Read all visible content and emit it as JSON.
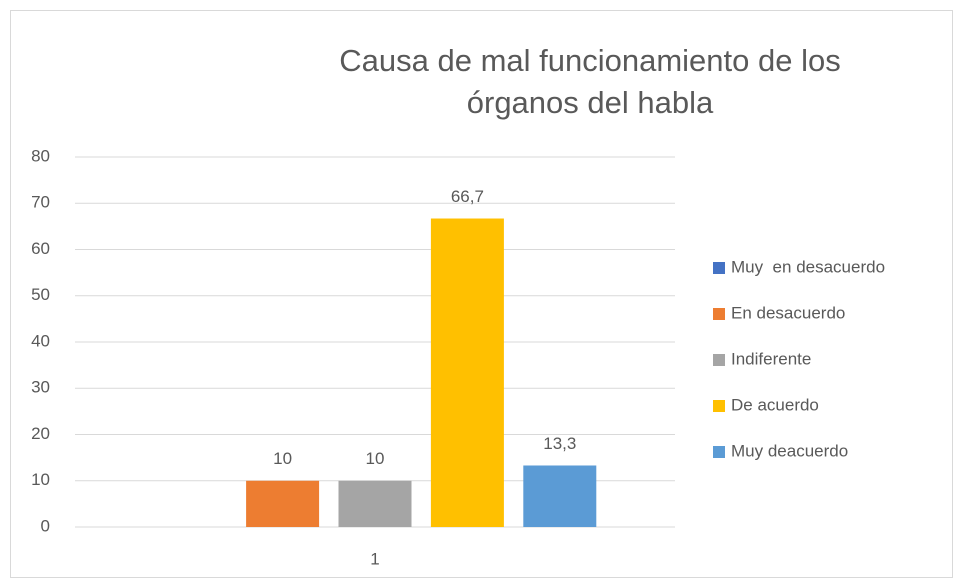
{
  "chart_data": {
    "type": "bar",
    "title": "Causa de mal funcionamiento de los órganos del habla",
    "categories": [
      "1"
    ],
    "series": [
      {
        "name": "Muy  en desacuerdo",
        "color": "#4472c4",
        "values": [
          0
        ]
      },
      {
        "name": "En desacuerdo",
        "color": "#ed7d31",
        "values": [
          10
        ]
      },
      {
        "name": "Indiferente",
        "color": "#a5a5a5",
        "values": [
          10
        ]
      },
      {
        "name": "De acuerdo",
        "color": "#ffc000",
        "values": [
          66.7
        ],
        "value_labels": [
          "66,7"
        ]
      },
      {
        "name": "Muy deacuerdo",
        "color": "#5b9bd5",
        "values": [
          13.3
        ],
        "value_labels": [
          "13,3"
        ]
      }
    ],
    "ylim": [
      0,
      80
    ],
    "yticks": [
      0,
      10,
      20,
      30,
      40,
      50,
      60,
      70,
      80
    ],
    "grid": true,
    "legend": "right"
  }
}
